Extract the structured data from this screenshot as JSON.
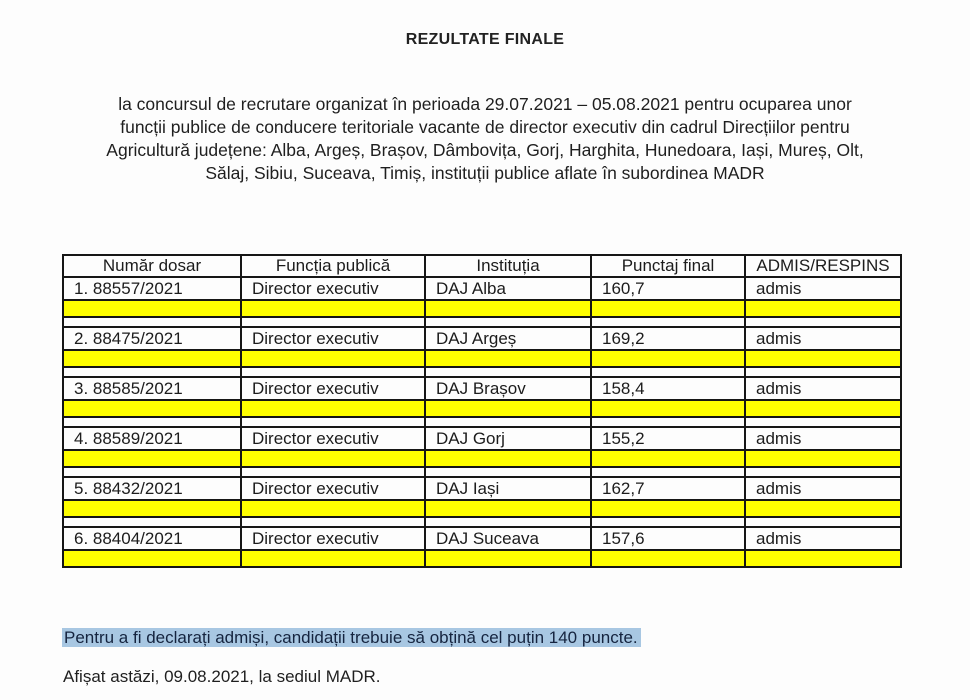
{
  "page": {
    "title": "REZULTATE FINALE",
    "intro_lines": [
      "la concursul de recrutare organizat în perioada 29.07.2021 – 05.08.2021 pentru ocuparea unor",
      "funcții publice de conducere teritoriale vacante de director executiv din cadrul Direcțiilor pentru",
      "Agricultură județene: Alba, Argeș, Brașov, Dâmbovița, Gorj, Harghita, Hunedoara, Iași, Mureș, Olt,",
      "Sălaj, Sibiu, Suceava, Timiș, instituții publice aflate în subordinea MADR"
    ],
    "note": "Pentru a fi declarați admiși, candidații trebuie să obțină cel puțin 140 puncte.",
    "footer": "Afișat astăzi, 09.08.2021, la sediul MADR."
  },
  "table": {
    "headers": [
      "Număr dosar",
      "Funcția publică",
      "Instituția",
      "Punctaj final",
      "ADMIS/RESPINS"
    ],
    "rows": [
      {
        "dosar": "1. 88557/2021",
        "functie": "Director executiv",
        "institutie": "DAJ Alba",
        "punctaj": "160,7",
        "rezultat": "admis"
      },
      {
        "dosar": "2. 88475/2021",
        "functie": "Director executiv",
        "institutie": "DAJ Argeș",
        "punctaj": "169,2",
        "rezultat": "admis"
      },
      {
        "dosar": "3. 88585/2021",
        "functie": "Director executiv",
        "institutie": "DAJ Brașov",
        "punctaj": "158,4",
        "rezultat": "admis"
      },
      {
        "dosar": "4. 88589/2021",
        "functie": "Director executiv",
        "institutie": "DAJ Gorj",
        "punctaj": "155,2",
        "rezultat": "admis"
      },
      {
        "dosar": "5. 88432/2021",
        "functie": "Director executiv",
        "institutie": "DAJ Iași",
        "punctaj": "162,7",
        "rezultat": "admis"
      },
      {
        "dosar": "6. 88404/2021",
        "functie": "Director executiv",
        "institutie": "DAJ Suceava",
        "punctaj": "157,6",
        "rezultat": "admis"
      }
    ]
  },
  "colors": {
    "row_highlight_yellow": "#ffff00",
    "text_selection_blue": "#a8c7e2",
    "border_black": "#161616"
  }
}
